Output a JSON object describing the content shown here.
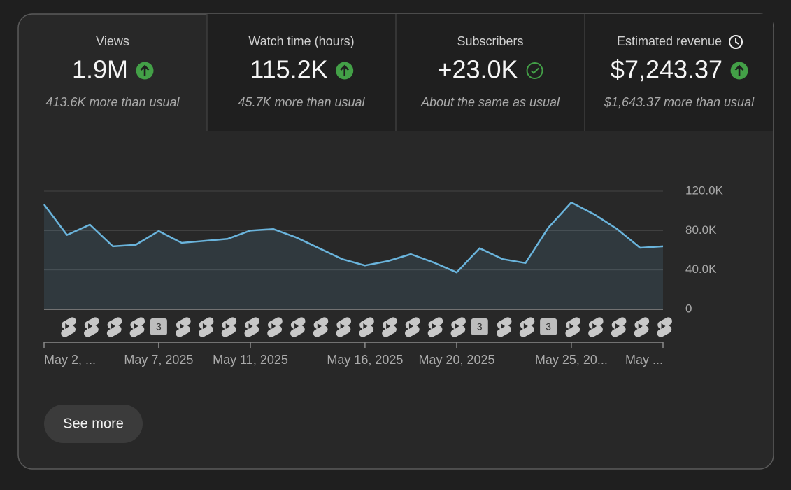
{
  "metrics": [
    {
      "title": "Views",
      "value": "1.9M",
      "comparison": "413.6K more than usual",
      "trend": "up",
      "selected": true
    },
    {
      "title": "Watch time (hours)",
      "value": "115.2K",
      "comparison": "45.7K more than usual",
      "trend": "up"
    },
    {
      "title": "Subscribers",
      "value": "+23.0K",
      "comparison": "About the same as usual",
      "trend": "same"
    },
    {
      "title": "Estimated revenue",
      "value": "$7,243.37",
      "comparison": "$1,643.37 more than usual",
      "trend": "up",
      "icon": "clock"
    }
  ],
  "chart_data": {
    "type": "area",
    "categories": [
      "May 2, ...",
      null,
      null,
      null,
      null,
      "May 7, 2025",
      null,
      null,
      null,
      "May 11, 2025",
      null,
      null,
      null,
      null,
      "May 16, 2025",
      null,
      null,
      null,
      "May 20, 2025",
      null,
      null,
      null,
      null,
      "May 25, 20...",
      null,
      null,
      null,
      "May ..."
    ],
    "values": [
      106500,
      75500,
      86000,
      64000,
      65500,
      79500,
      67500,
      69500,
      71500,
      80000,
      81500,
      73000,
      62000,
      51000,
      44500,
      49000,
      56000,
      47500,
      37500,
      62000,
      51000,
      47000,
      83000,
      108500,
      96500,
      81500,
      62500,
      64000
    ],
    "badges": [
      null,
      null,
      null,
      null,
      null,
      3,
      null,
      null,
      null,
      null,
      null,
      null,
      null,
      null,
      null,
      null,
      null,
      null,
      null,
      3,
      null,
      null,
      3,
      null,
      null,
      null,
      null,
      null
    ],
    "color": "#6ab4dc",
    "ylim": [
      0,
      120000
    ],
    "yticks": [
      0,
      {
        "value": 40000,
        "label": "40.0K"
      },
      {
        "value": 80000,
        "label": "80.0K"
      },
      {
        "value": 120000,
        "label": "120.0K"
      }
    ],
    "grid": true
  },
  "button": "See more"
}
